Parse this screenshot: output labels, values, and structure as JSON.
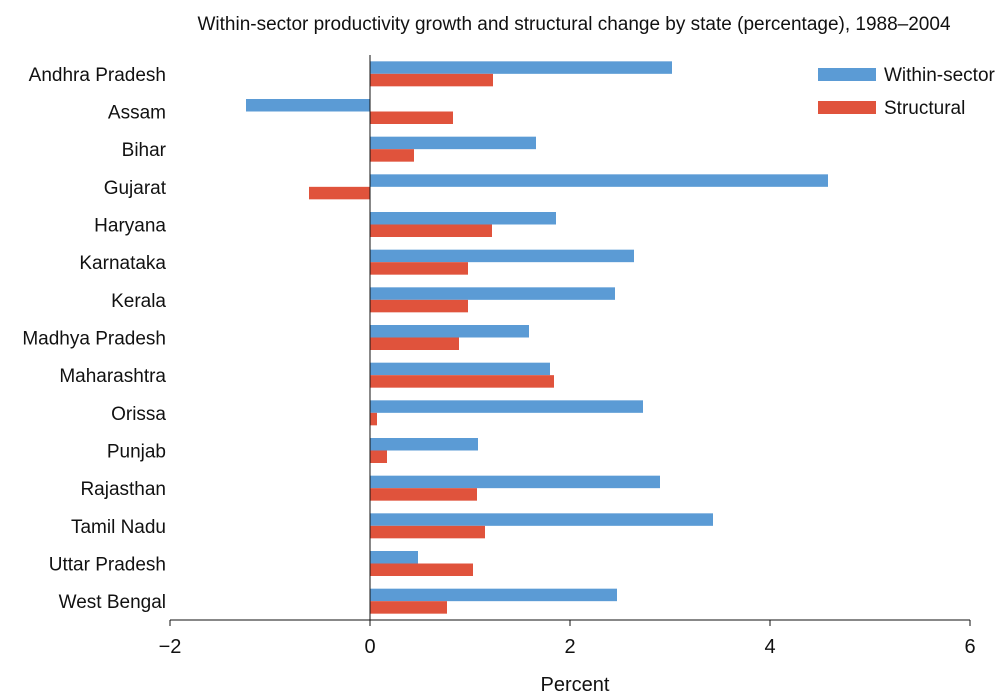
{
  "chart_data": {
    "type": "bar",
    "orientation": "horizontal",
    "title": "Within-sector productivity growth and structural change by state (percentage), 1988–2004",
    "xlabel": "Percent",
    "ylabel": "",
    "xlim": [
      -2,
      6
    ],
    "xticks": [
      "−2",
      "0",
      "2",
      "4",
      "6"
    ],
    "grid": false,
    "legend_position": "top-right",
    "categories": [
      "Andhra Pradesh",
      "Assam",
      "Bihar",
      "Gujarat",
      "Haryana",
      "Karnataka",
      "Kerala",
      "Madhya Pradesh",
      "Maharashtra",
      "Orissa",
      "Punjab",
      "Rajasthan",
      "Tamil Nadu",
      "Uttar Pradesh",
      "West Bengal"
    ],
    "series": [
      {
        "name": "Within-sector",
        "color": "#5b9bd5",
        "values": [
          3.02,
          -1.24,
          1.66,
          4.58,
          1.86,
          2.64,
          2.45,
          1.59,
          1.8,
          2.73,
          1.08,
          2.9,
          3.43,
          0.48,
          2.47
        ]
      },
      {
        "name": "Structural",
        "color": "#e0533c",
        "values": [
          1.23,
          0.83,
          0.44,
          -0.61,
          1.22,
          0.98,
          0.98,
          0.89,
          1.84,
          0.07,
          0.17,
          1.07,
          1.15,
          1.03,
          0.77
        ]
      }
    ]
  }
}
